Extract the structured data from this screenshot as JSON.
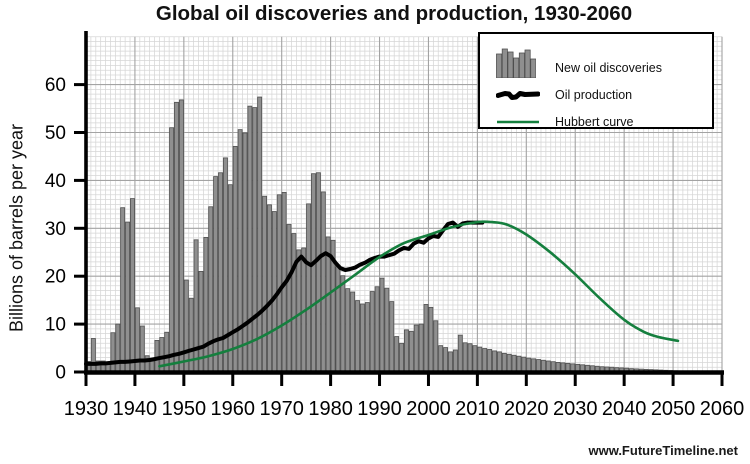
{
  "watermark": "www.FutureTimeline.net",
  "chart_data": {
    "type": "bar",
    "title": "Global oil discoveries and production, 1930-2060",
    "xlabel": "",
    "ylabel": "Billions of barrels per year",
    "xlim": [
      1930,
      2060
    ],
    "ylim": [
      0,
      70
    ],
    "x_ticks": [
      1930,
      1940,
      1950,
      1960,
      1970,
      1980,
      1990,
      2000,
      2010,
      2020,
      2030,
      2040,
      2050,
      2060
    ],
    "y_ticks": [
      0,
      10,
      20,
      30,
      40,
      50,
      60
    ],
    "grid": "fine 1-year by 1-unit minor grid, darker lines every decade and every 10 units",
    "legend_position": "top-right",
    "series": [
      {
        "name": "New oil discoveries",
        "type": "bar",
        "color": "#8f8f8f",
        "edge_color": "#4f4f4f",
        "start_year": 1930,
        "values": [
          2.2,
          7.0,
          2.3,
          2.3,
          2.0,
          8.2,
          10.0,
          34.3,
          31.3,
          36.2,
          13.4,
          9.6,
          3.4,
          2.4,
          6.6,
          7.2,
          8.3,
          51.0,
          56.3,
          56.8,
          19.2,
          15.4,
          27.6,
          21.0,
          28.1,
          34.5,
          40.8,
          41.6,
          44.7,
          39.1,
          47.1,
          50.6,
          49.9,
          55.5,
          55.2,
          57.4,
          36.7,
          34.9,
          33.5,
          37.0,
          37.5,
          30.8,
          28.9,
          25.5,
          25.9,
          35.1,
          41.4,
          41.6,
          37.6,
          28.2,
          27.5,
          22.0,
          20.1,
          17.4,
          16.7,
          14.9,
          14.2,
          14.5,
          16.8,
          17.8,
          19.6,
          17.5,
          14.7,
          7.4,
          6.0,
          8.8,
          8.5,
          9.8,
          10.0,
          14.1,
          13.5,
          10.7,
          5.5,
          5.1,
          4.2,
          4.6,
          7.7,
          6.1,
          5.9,
          5.5,
          5.2,
          4.9,
          4.7,
          4.4,
          4.2,
          3.9,
          3.7,
          3.5,
          3.3,
          3.1,
          2.9,
          2.75,
          2.6,
          2.45,
          2.3,
          2.15,
          2.0,
          1.9,
          1.8,
          1.7,
          1.6,
          1.5,
          1.4,
          1.3,
          1.2,
          1.1,
          1.05,
          1.0,
          0.9,
          0.85,
          0.8,
          0.7,
          0.65,
          0.6,
          0.55,
          0.5,
          0.45,
          0.4,
          0.35,
          0.3,
          0.25,
          0.2,
          0.18,
          0.15,
          0.12
        ]
      },
      {
        "name": "Oil production",
        "type": "line",
        "color": "#000000",
        "stroke_width": 4,
        "start_year": 1930,
        "values": [
          1.7,
          1.7,
          1.7,
          1.8,
          1.8,
          1.9,
          2.0,
          2.1,
          2.1,
          2.2,
          2.3,
          2.4,
          2.4,
          2.5,
          2.7,
          2.9,
          3.1,
          3.3,
          3.6,
          3.8,
          4.1,
          4.4,
          4.7,
          5.0,
          5.3,
          5.9,
          6.4,
          6.8,
          7.1,
          7.7,
          8.3,
          8.9,
          9.6,
          10.3,
          11.1,
          11.9,
          12.8,
          13.8,
          14.9,
          16.2,
          17.7,
          19.0,
          20.8,
          23.0,
          24.1,
          22.9,
          22.3,
          23.2,
          24.2,
          24.8,
          24.2,
          22.8,
          21.7,
          21.3,
          21.5,
          21.8,
          22.4,
          22.8,
          23.4,
          23.8,
          24.1,
          24.1,
          24.4,
          24.7,
          25.4,
          25.9,
          25.7,
          26.8,
          27.3,
          27.0,
          27.9,
          28.4,
          28.2,
          29.6,
          30.9,
          31.2,
          30.3,
          31.0,
          31.2,
          31.2,
          31.2,
          31.2
        ]
      },
      {
        "name": "Hubbert curve",
        "type": "line",
        "color": "#157f3e",
        "stroke_width": 2.6,
        "points": [
          [
            1945,
            1.2
          ],
          [
            1950,
            2.2
          ],
          [
            1955,
            3.3
          ],
          [
            1960,
            4.8
          ],
          [
            1965,
            6.9
          ],
          [
            1970,
            9.7
          ],
          [
            1975,
            13.0
          ],
          [
            1980,
            16.6
          ],
          [
            1985,
            20.3
          ],
          [
            1990,
            24.0
          ],
          [
            1995,
            26.9
          ],
          [
            2000,
            28.6
          ],
          [
            2005,
            30.3
          ],
          [
            2010,
            31.3
          ],
          [
            2013,
            31.3
          ],
          [
            2016,
            30.8
          ],
          [
            2020,
            28.7
          ],
          [
            2025,
            24.9
          ],
          [
            2030,
            20.4
          ],
          [
            2035,
            15.4
          ],
          [
            2040,
            10.9
          ],
          [
            2044,
            8.4
          ],
          [
            2047,
            7.3
          ],
          [
            2051,
            6.5
          ]
        ]
      }
    ]
  }
}
